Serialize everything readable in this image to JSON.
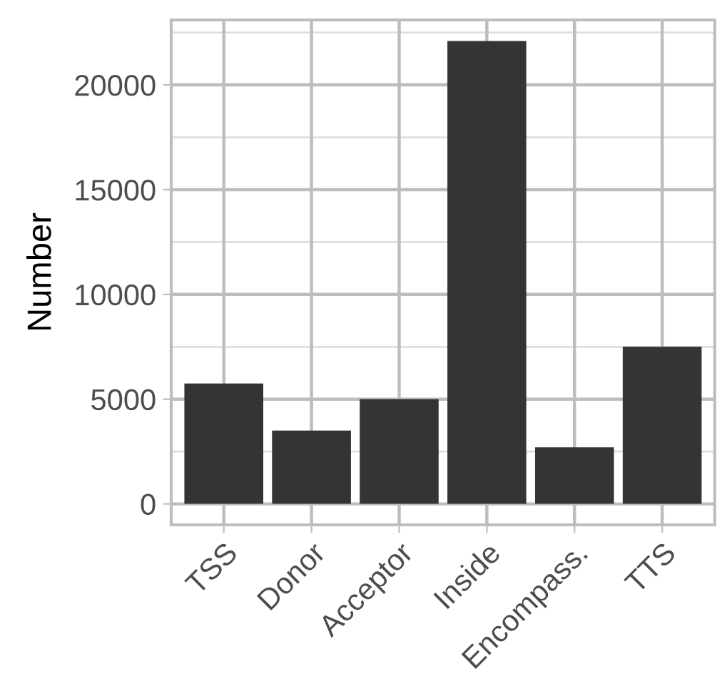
{
  "chart_data": {
    "type": "bar",
    "ylabel": "Number",
    "categories": [
      "TSS",
      "Donor",
      "Acceptor",
      "Inside",
      "Encompass.",
      "TTS"
    ],
    "values": [
      5750,
      3500,
      5000,
      22100,
      2700,
      7500
    ],
    "color": "#333435",
    "ylim": [
      -1000,
      23100
    ],
    "yticks": [
      0,
      5000,
      10000,
      15000,
      20000
    ],
    "grid": true
  }
}
